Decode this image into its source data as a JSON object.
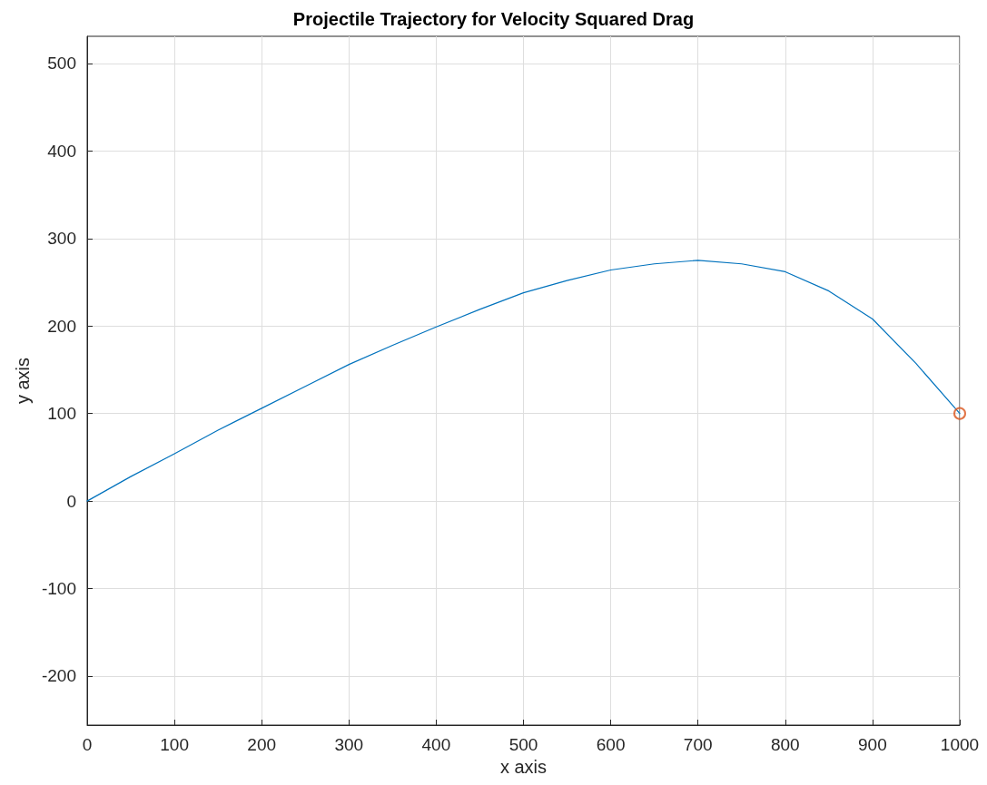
{
  "chart_data": {
    "type": "line",
    "title": "Projectile Trajectory for Velocity Squared Drag",
    "xlabel": "x axis",
    "ylabel": "y axis",
    "xlim": [
      0,
      1000
    ],
    "ylim": [
      -256,
      531
    ],
    "xticks": [
      0,
      100,
      200,
      300,
      400,
      500,
      600,
      700,
      800,
      900,
      1000
    ],
    "yticks": [
      -200,
      -100,
      0,
      100,
      200,
      300,
      400,
      500
    ],
    "grid": true,
    "marker": "none",
    "line_style": "solid",
    "series": [
      {
        "color": "#0072bd",
        "x": [
          0,
          50,
          100,
          150,
          200,
          250,
          300,
          350,
          400,
          450,
          500,
          550,
          600,
          650,
          700,
          750,
          800,
          850,
          900,
          950,
          1000
        ],
        "values": [
          0,
          28,
          54,
          81,
          106,
          131,
          156,
          178,
          199,
          219,
          238,
          252,
          264,
          271,
          275,
          271,
          262,
          240,
          208,
          157,
          100
        ]
      },
      {
        "type": "scatter",
        "marker": "circle",
        "color": "#d95319",
        "x": [
          1000
        ],
        "values": [
          100
        ]
      }
    ]
  }
}
